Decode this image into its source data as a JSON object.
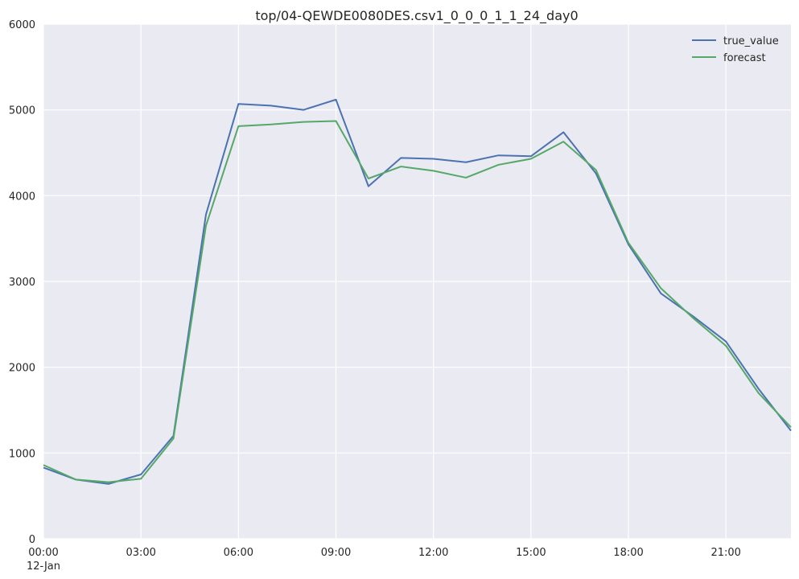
{
  "chart_data": {
    "type": "line",
    "title": "top/04-QEWDE0080DES.csv1_0_0_0_1_1_24_day0",
    "xlabel": "",
    "ylabel": "",
    "x": [
      "00:00",
      "01:00",
      "02:00",
      "03:00",
      "04:00",
      "05:00",
      "06:00",
      "07:00",
      "08:00",
      "09:00",
      "10:00",
      "11:00",
      "12:00",
      "13:00",
      "14:00",
      "15:00",
      "16:00",
      "17:00",
      "18:00",
      "19:00",
      "20:00",
      "21:00",
      "22:00",
      "23:00"
    ],
    "x_ticks": [
      "00:00",
      "03:00",
      "06:00",
      "09:00",
      "12:00",
      "15:00",
      "18:00",
      "21:00"
    ],
    "x_date_label": "12-Jan",
    "xlim": [
      "00:00",
      "23:00"
    ],
    "ylim": [
      0,
      6000
    ],
    "y_ticks": [
      0,
      1000,
      2000,
      3000,
      4000,
      5000,
      6000
    ],
    "grid": true,
    "legend_position": "top-right",
    "series": [
      {
        "name": "true_value",
        "color": "#4c72b0",
        "values": [
          830,
          690,
          640,
          750,
          1200,
          3780,
          5070,
          5050,
          5000,
          5120,
          4110,
          4440,
          4430,
          4390,
          4470,
          4460,
          4740,
          4260,
          3430,
          2860,
          2590,
          2300,
          1750,
          1260
        ]
      },
      {
        "name": "forecast",
        "color": "#55a868",
        "values": [
          860,
          690,
          660,
          700,
          1170,
          3650,
          4810,
          4830,
          4860,
          4870,
          4200,
          4340,
          4290,
          4210,
          4360,
          4430,
          4630,
          4300,
          3450,
          2920,
          2570,
          2250,
          1700,
          1300
        ]
      }
    ]
  }
}
